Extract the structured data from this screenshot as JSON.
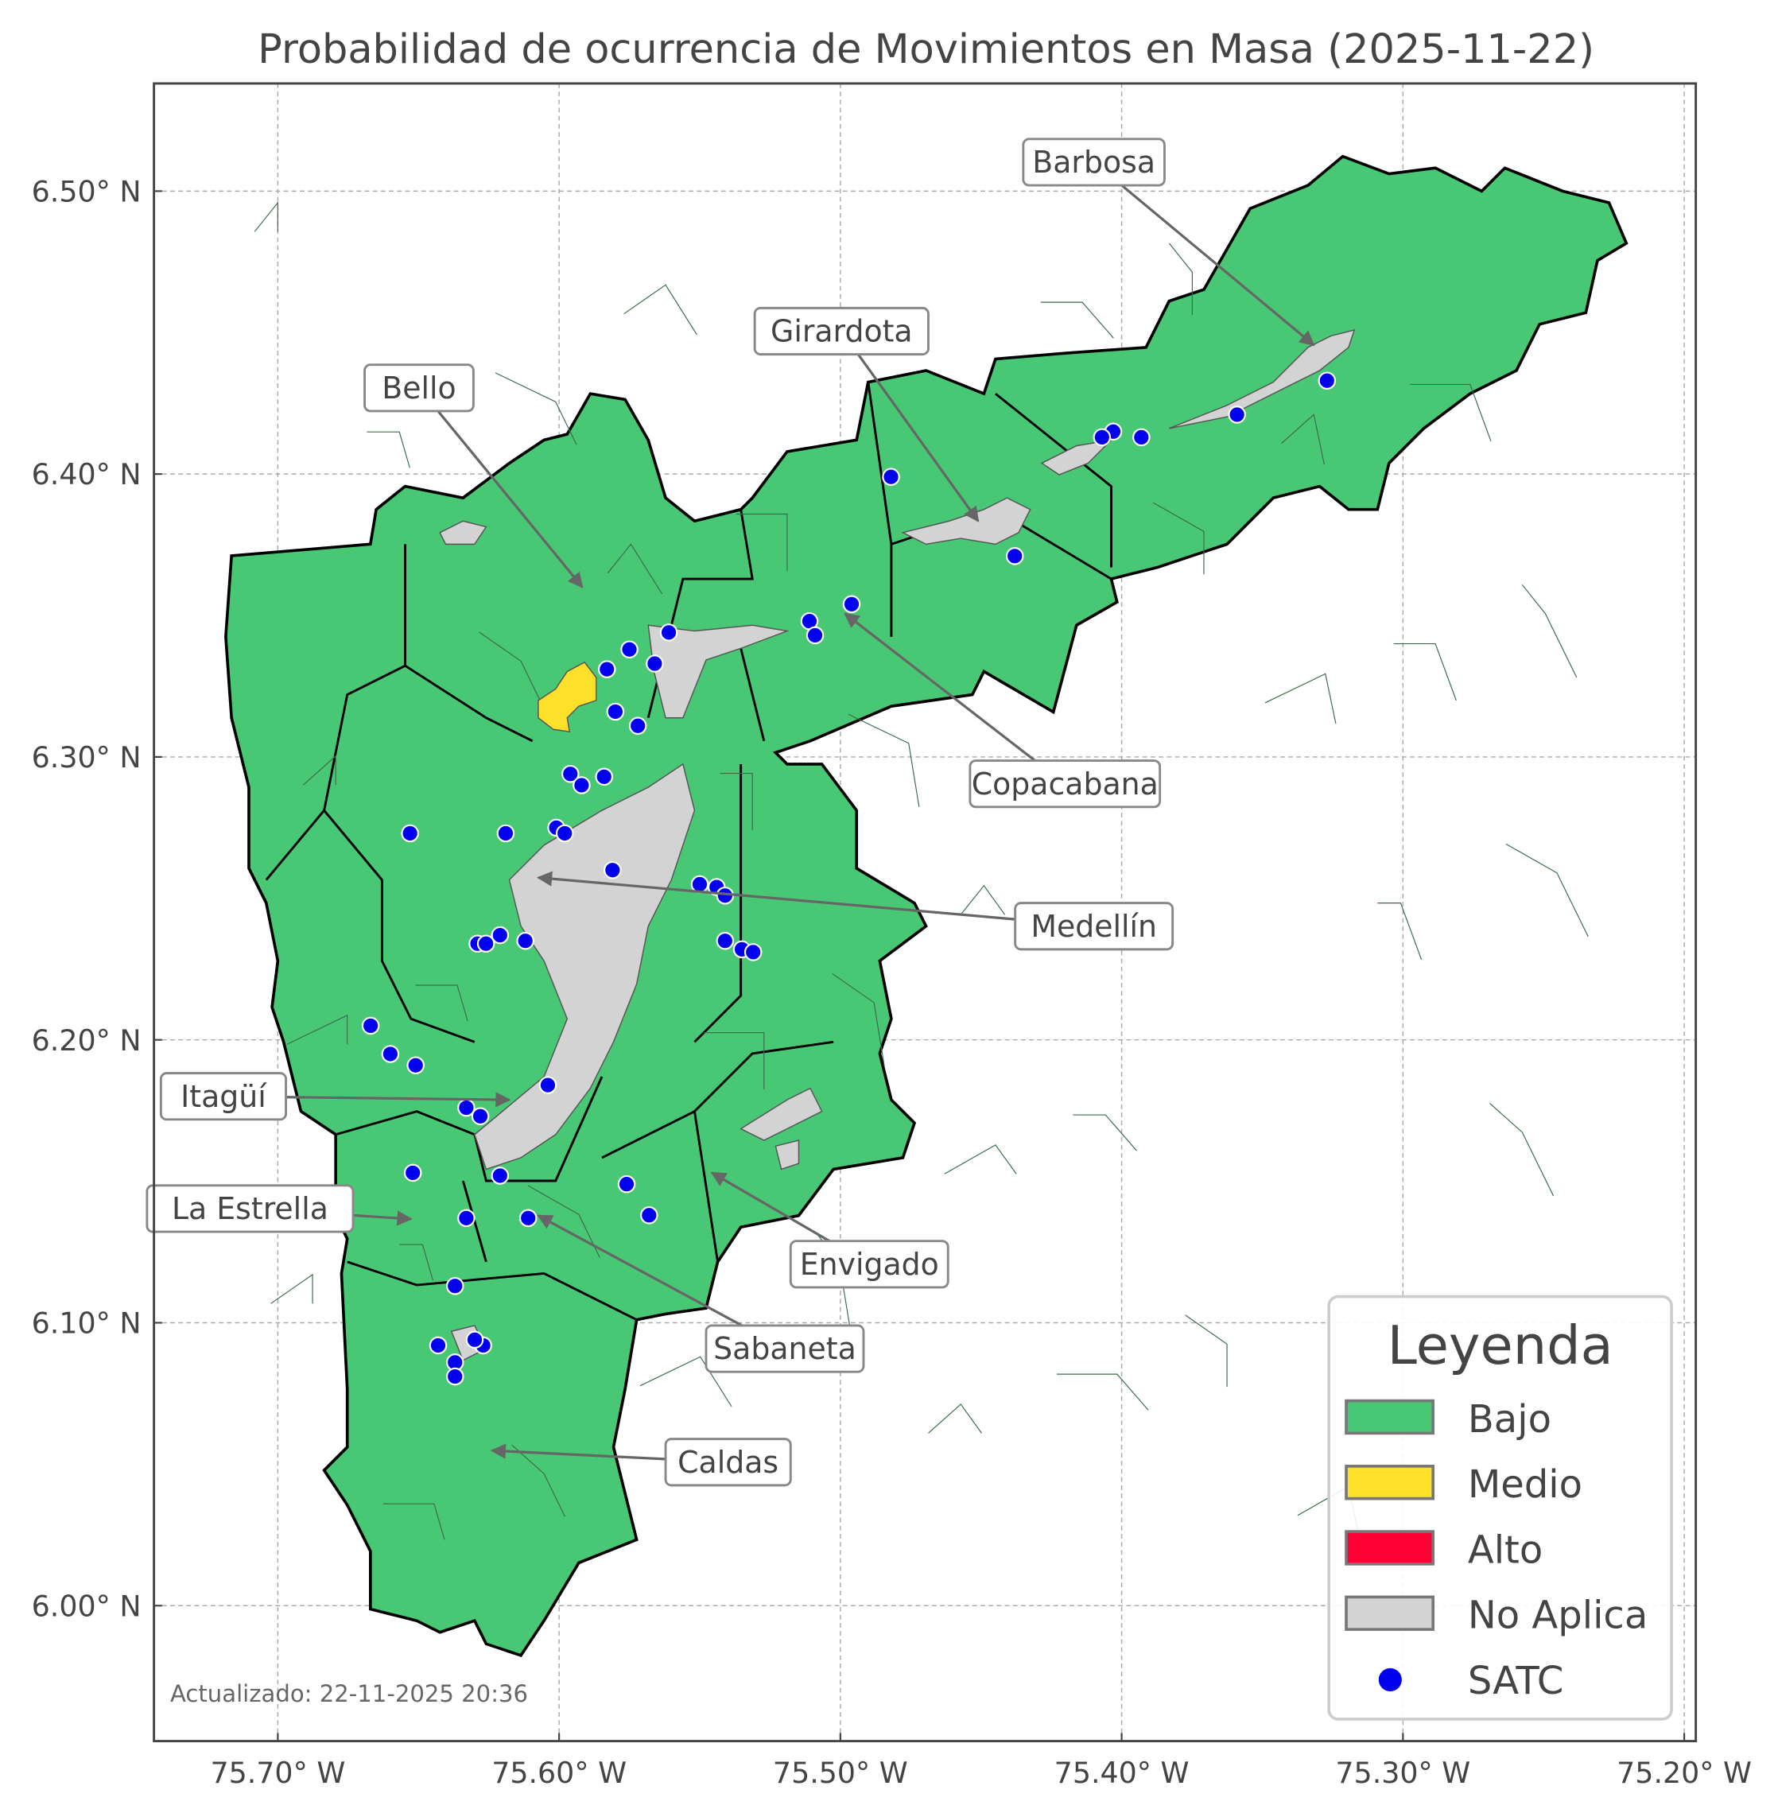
{
  "title": "Probabilidad de ocurrencia de Movimientos en Masa (2025-11-22)",
  "footer": "Actualizado: 22-11-2025 20:36",
  "colors": {
    "bajo": "#48c774",
    "medio": "#fde02a",
    "alto": "#ff0033",
    "no_aplica": "#d3d3d3",
    "satc": "#0000ee"
  },
  "axes": {
    "x_ticks": [
      {
        "value": -75.7,
        "label": "75.70° W"
      },
      {
        "value": -75.6,
        "label": "75.60° W"
      },
      {
        "value": -75.5,
        "label": "75.50° W"
      },
      {
        "value": -75.4,
        "label": "75.40° W"
      },
      {
        "value": -75.3,
        "label": "75.30° W"
      },
      {
        "value": -75.2,
        "label": "75.20° W"
      }
    ],
    "y_ticks": [
      {
        "value": 6.0,
        "label": "6.00° N"
      },
      {
        "value": 6.1,
        "label": "6.10° N"
      },
      {
        "value": 6.2,
        "label": "6.20° N"
      },
      {
        "value": 6.3,
        "label": "6.30° N"
      },
      {
        "value": 6.4,
        "label": "6.40° N"
      },
      {
        "value": 6.5,
        "label": "6.50° N"
      }
    ],
    "grid": true
  },
  "annotations": [
    "Barbosa",
    "Girardota",
    "Bello",
    "Copacabana",
    "Medellín",
    "Itagüí",
    "La Estrella",
    "Envigado",
    "Sabaneta",
    "Caldas"
  ],
  "legend": {
    "title": "Leyenda",
    "placement": "bottom-right",
    "items": [
      {
        "label": "Bajo",
        "type": "patch",
        "color": "#48c774"
      },
      {
        "label": "Medio",
        "type": "patch",
        "color": "#fde02a"
      },
      {
        "label": "Alto",
        "type": "patch",
        "color": "#ff0033"
      },
      {
        "label": "No Aplica",
        "type": "patch",
        "color": "#d3d3d3"
      },
      {
        "label": "SATC",
        "type": "point",
        "color": "#0000ee"
      }
    ]
  },
  "satc_points": [
    [
      -75.327,
      6.433
    ],
    [
      -75.359,
      6.421
    ],
    [
      -75.393,
      6.413
    ],
    [
      -75.403,
      6.415
    ],
    [
      -75.407,
      6.413
    ],
    [
      -75.482,
      6.399
    ],
    [
      -75.438,
      6.371
    ],
    [
      -75.496,
      6.354
    ],
    [
      -75.511,
      6.348
    ],
    [
      -75.509,
      6.343
    ],
    [
      -75.561,
      6.344
    ],
    [
      -75.575,
      6.338
    ],
    [
      -75.566,
      6.333
    ],
    [
      -75.583,
      6.331
    ],
    [
      -75.58,
      6.316
    ],
    [
      -75.572,
      6.311
    ],
    [
      -75.596,
      6.294
    ],
    [
      -75.592,
      6.29
    ],
    [
      -75.584,
      6.293
    ],
    [
      -75.653,
      6.273
    ],
    [
      -75.619,
      6.273
    ],
    [
      -75.601,
      6.275
    ],
    [
      -75.598,
      6.273
    ],
    [
      -75.581,
      6.26
    ],
    [
      -75.55,
      6.255
    ],
    [
      -75.544,
      6.254
    ],
    [
      -75.541,
      6.251
    ],
    [
      -75.621,
      6.237
    ],
    [
      -75.612,
      6.235
    ],
    [
      -75.629,
      6.234
    ],
    [
      -75.626,
      6.234
    ],
    [
      -75.541,
      6.235
    ],
    [
      -75.535,
      6.232
    ],
    [
      -75.531,
      6.231
    ],
    [
      -75.667,
      6.205
    ],
    [
      -75.66,
      6.195
    ],
    [
      -75.651,
      6.191
    ],
    [
      -75.604,
      6.184
    ],
    [
      -75.633,
      6.176
    ],
    [
      -75.628,
      6.173
    ],
    [
      -75.652,
      6.153
    ],
    [
      -75.621,
      6.152
    ],
    [
      -75.576,
      6.149
    ],
    [
      -75.568,
      6.138
    ],
    [
      -75.633,
      6.137
    ],
    [
      -75.611,
      6.137
    ],
    [
      -75.637,
      6.113
    ],
    [
      -75.643,
      6.092
    ],
    [
      -75.627,
      6.092
    ],
    [
      -75.63,
      6.094
    ],
    [
      -75.637,
      6.086
    ],
    [
      -75.637,
      6.081
    ]
  ]
}
